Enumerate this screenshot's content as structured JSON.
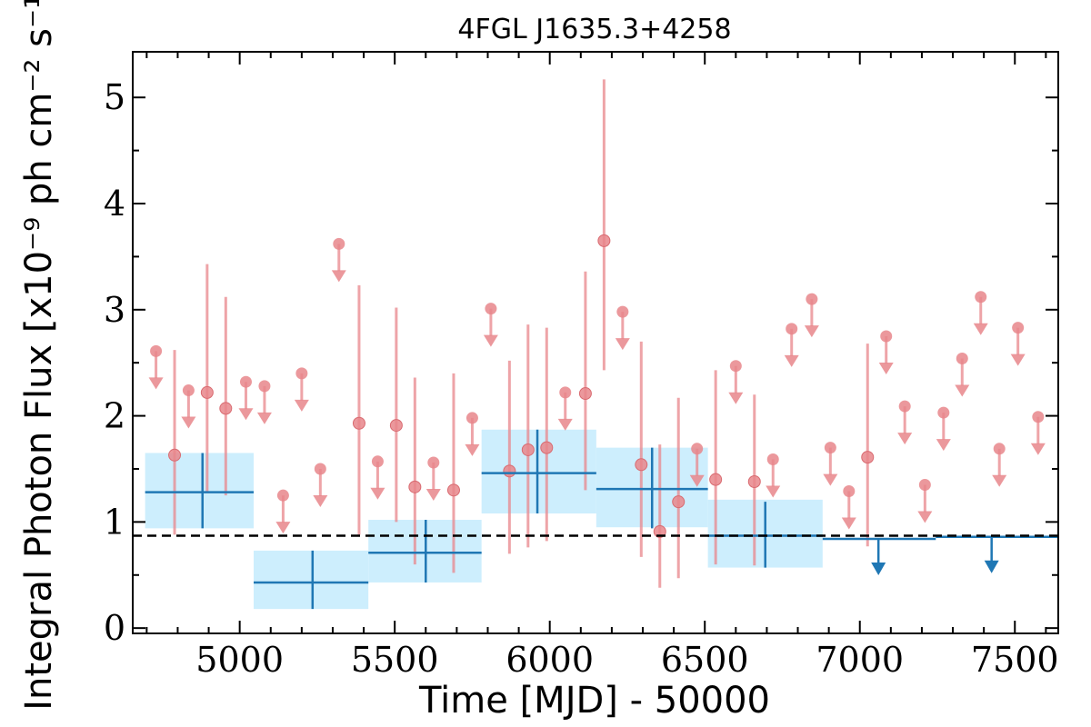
{
  "chart_data": {
    "type": "scatter",
    "title": "4FGL J1635.3+4258",
    "xlabel": "Time [MJD] - 50000",
    "ylabel": "Integral Photon Flux [x10⁻⁹ ph cm⁻² s⁻¹]",
    "xlim": [
      4655,
      7640
    ],
    "ylim": [
      -0.05,
      5.43
    ],
    "x_ticks": [
      5000,
      5500,
      6000,
      6500,
      7000,
      7500
    ],
    "x_tick_labels": [
      "5000",
      "5500",
      "6000",
      "6500",
      "7000",
      "7500"
    ],
    "y_ticks": [
      0,
      1,
      2,
      3,
      4,
      5
    ],
    "y_tick_labels": [
      "0",
      "1",
      "2",
      "3",
      "4",
      "5"
    ],
    "colors": {
      "fine": "#e8868b",
      "coarse": "#1f77b4",
      "band": "#cdeefd",
      "reference": "#000000"
    },
    "reference_line": {
      "y": 0.87,
      "style": "dashed"
    },
    "series": [
      {
        "binning": "fine",
        "detections": [
          {
            "x": 4790,
            "y": 1.63,
            "ylo": 0.88,
            "yhi": 2.62
          },
          {
            "x": 4895,
            "y": 2.22,
            "ylo": 1.28,
            "yhi": 3.43
          },
          {
            "x": 4955,
            "y": 2.07,
            "ylo": 1.25,
            "yhi": 3.12
          },
          {
            "x": 5385,
            "y": 1.93,
            "ylo": 0.88,
            "yhi": 3.23
          },
          {
            "x": 5505,
            "y": 1.91,
            "ylo": 1.0,
            "yhi": 3.02
          },
          {
            "x": 5565,
            "y": 1.33,
            "ylo": 0.6,
            "yhi": 2.36
          },
          {
            "x": 5690,
            "y": 1.3,
            "ylo": 0.52,
            "yhi": 2.4
          },
          {
            "x": 5870,
            "y": 1.48,
            "ylo": 0.7,
            "yhi": 2.52
          },
          {
            "x": 5930,
            "y": 1.68,
            "ylo": 0.76,
            "yhi": 2.86
          },
          {
            "x": 5990,
            "y": 1.7,
            "ylo": 0.82,
            "yhi": 2.83
          },
          {
            "x": 6115,
            "y": 2.21,
            "ylo": 1.3,
            "yhi": 3.36
          },
          {
            "x": 6175,
            "y": 3.65,
            "ylo": 2.43,
            "yhi": 5.17
          },
          {
            "x": 6295,
            "y": 1.54,
            "ylo": 0.67,
            "yhi": 2.7
          },
          {
            "x": 6355,
            "y": 0.91,
            "ylo": 0.38,
            "yhi": 1.73
          },
          {
            "x": 6415,
            "y": 1.19,
            "ylo": 0.47,
            "yhi": 2.17
          },
          {
            "x": 6535,
            "y": 1.4,
            "ylo": 0.6,
            "yhi": 2.43
          },
          {
            "x": 6660,
            "y": 1.38,
            "ylo": 0.59,
            "yhi": 2.2
          },
          {
            "x": 7025,
            "y": 1.61,
            "ylo": 0.77,
            "yhi": 2.68
          }
        ],
        "upper_limits": [
          {
            "x": 4730,
            "y": 2.61
          },
          {
            "x": 4835,
            "y": 2.24
          },
          {
            "x": 5020,
            "y": 2.32
          },
          {
            "x": 5080,
            "y": 2.28
          },
          {
            "x": 5140,
            "y": 1.25
          },
          {
            "x": 5200,
            "y": 2.4
          },
          {
            "x": 5260,
            "y": 1.5
          },
          {
            "x": 5320,
            "y": 3.62
          },
          {
            "x": 5445,
            "y": 1.57
          },
          {
            "x": 5625,
            "y": 1.56
          },
          {
            "x": 5750,
            "y": 1.98
          },
          {
            "x": 5810,
            "y": 3.01
          },
          {
            "x": 6050,
            "y": 2.22
          },
          {
            "x": 6235,
            "y": 2.98
          },
          {
            "x": 6475,
            "y": 1.69
          },
          {
            "x": 6600,
            "y": 2.47
          },
          {
            "x": 6720,
            "y": 1.59
          },
          {
            "x": 6780,
            "y": 2.82
          },
          {
            "x": 6845,
            "y": 3.1
          },
          {
            "x": 6905,
            "y": 1.7
          },
          {
            "x": 6965,
            "y": 1.29
          },
          {
            "x": 7085,
            "y": 2.75
          },
          {
            "x": 7145,
            "y": 2.09
          },
          {
            "x": 7210,
            "y": 1.35
          },
          {
            "x": 7270,
            "y": 2.03
          },
          {
            "x": 7330,
            "y": 2.54
          },
          {
            "x": 7390,
            "y": 3.12
          },
          {
            "x": 7450,
            "y": 1.69
          },
          {
            "x": 7510,
            "y": 2.83
          },
          {
            "x": 7575,
            "y": 1.99
          }
        ]
      },
      {
        "binning": "coarse",
        "detections": [
          {
            "x": 4880,
            "xlo": 4695,
            "xhi": 5045,
            "y": 1.28,
            "ylo": 0.94,
            "yhi": 1.65,
            "band_lo": 0.94,
            "band_hi": 1.65
          },
          {
            "x": 5235,
            "xlo": 5045,
            "xhi": 5415,
            "y": 0.43,
            "ylo": 0.18,
            "yhi": 0.73,
            "band_lo": 0.18,
            "band_hi": 0.73
          },
          {
            "x": 5600,
            "xlo": 5415,
            "xhi": 5780,
            "y": 0.71,
            "ylo": 0.43,
            "yhi": 1.02,
            "band_lo": 0.43,
            "band_hi": 1.02
          },
          {
            "x": 5960,
            "xlo": 5780,
            "xhi": 6150,
            "y": 1.46,
            "ylo": 1.08,
            "yhi": 1.87,
            "band_lo": 1.08,
            "band_hi": 1.87
          },
          {
            "x": 6330,
            "xlo": 6150,
            "xhi": 6510,
            "y": 1.31,
            "ylo": 0.94,
            "yhi": 1.7,
            "band_lo": 0.95,
            "band_hi": 1.7
          },
          {
            "x": 6695,
            "xlo": 6510,
            "xhi": 6880,
            "y": 0.87,
            "ylo": 0.57,
            "yhi": 1.19,
            "band_lo": 0.57,
            "band_hi": 1.21
          }
        ],
        "upper_limits": [
          {
            "x": 7060,
            "xlo": 6880,
            "xhi": 7245,
            "y": 0.84
          },
          {
            "x": 7425,
            "xlo": 7245,
            "xhi": 7640,
            "y": 0.86
          }
        ]
      }
    ]
  }
}
